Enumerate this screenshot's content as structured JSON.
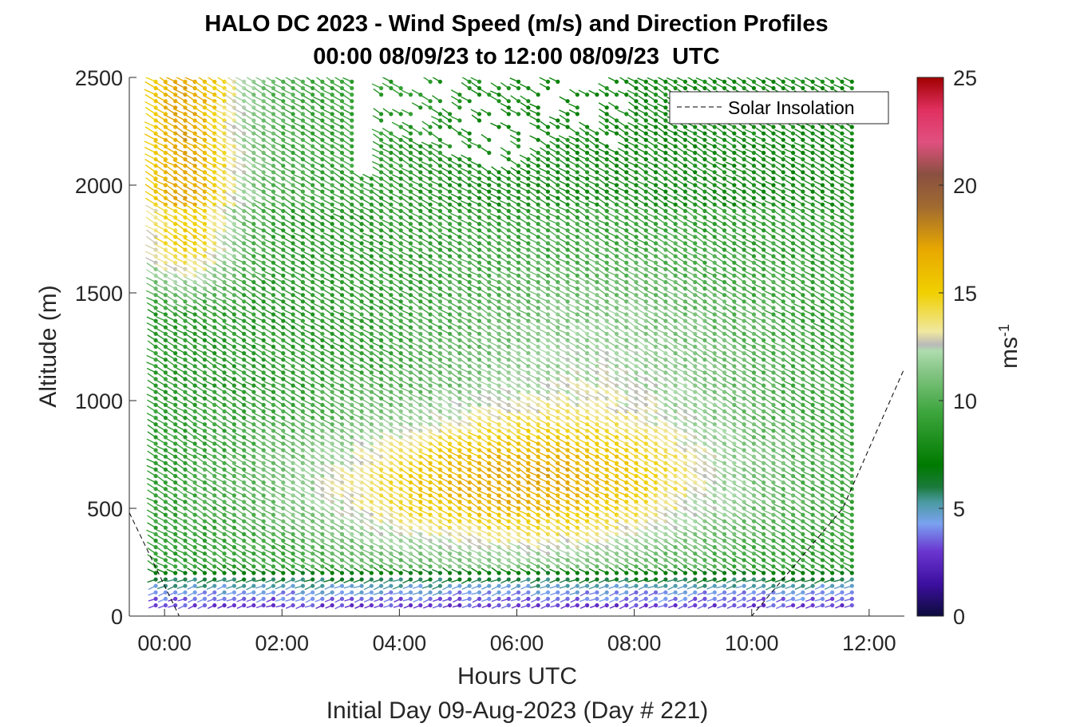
{
  "chart_data": {
    "type": "wind barb profile",
    "title": "HALO DC 2023 - Wind Speed (m/s) and Direction Profiles",
    "subtitle": "00:00 08/09/23 to 12:00 08/09/23  UTC",
    "xlabel": "Hours UTC",
    "xlabel_secondary": "Initial Day 09-Aug-2023 (Day # 221)",
    "ylabel": "Altitude (m)",
    "x_tick_labels": [
      "00:00",
      "02:00",
      "04:00",
      "06:00",
      "08:00",
      "10:00",
      "12:00"
    ],
    "x_ticks_hours": [
      0,
      2,
      4,
      6,
      8,
      10,
      12
    ],
    "xlim_hours": [
      -0.6,
      12.6
    ],
    "y_ticks": [
      0,
      500,
      1000,
      1500,
      2000,
      2500
    ],
    "ylim": [
      0,
      2500
    ],
    "colorbar": {
      "label": "ms-1",
      "label_base": "ms",
      "label_exponent": "-1",
      "ticks": [
        0,
        5,
        10,
        15,
        20,
        25
      ],
      "range": [
        0,
        25
      ],
      "colors": [
        {
          "v": 0,
          "c": "#0c0c3c"
        },
        {
          "v": 1.5,
          "c": "#3d0fa0"
        },
        {
          "v": 3,
          "c": "#6a35d0"
        },
        {
          "v": 4.3,
          "c": "#7aa2f0"
        },
        {
          "v": 5.3,
          "c": "#4a9aa0"
        },
        {
          "v": 6,
          "c": "#1a7a3a"
        },
        {
          "v": 7,
          "c": "#007a00"
        },
        {
          "v": 9.5,
          "c": "#3ea63e"
        },
        {
          "v": 11.5,
          "c": "#8cc88c"
        },
        {
          "v": 12.3,
          "c": "#aedcae"
        },
        {
          "v": 12.6,
          "c": "#b9b9b9"
        },
        {
          "v": 13.2,
          "c": "#f0e8a0"
        },
        {
          "v": 15,
          "c": "#f0d000"
        },
        {
          "v": 17,
          "c": "#e8a800"
        },
        {
          "v": 19,
          "c": "#a06a30"
        },
        {
          "v": 20.5,
          "c": "#8a5040"
        },
        {
          "v": 22,
          "c": "#e05080"
        },
        {
          "v": 23.5,
          "c": "#e03060"
        },
        {
          "v": 25,
          "c": "#a00000"
        }
      ]
    },
    "legend": {
      "placement": "top-right",
      "entries": [
        "Solar Insolation"
      ]
    },
    "series": [
      {
        "name": "Solar Insolation",
        "style": "dashed",
        "color": "#000000",
        "x": [
          -0.6,
          0.25,
          10.0,
          11.55,
          12.6
        ],
        "y": [
          480,
          0,
          0,
          500,
          1150
        ]
      }
    ],
    "wind_profile_summary": {
      "time_start_hours": -0.15,
      "time_end_hours": 11.75,
      "time_step_hours": 0.167,
      "altitude_start_m": 50,
      "altitude_end_m": 2500,
      "altitude_step_m": 30,
      "direction": "from northwest (barbs tilt toward upper-left)",
      "near_surface_speed_ms": 3,
      "jet_core_speed_ms": 15,
      "jet_core_altitude_m": 600,
      "jet_core_time_hours": 6.0,
      "data_gap_region": {
        "hours": [
          3.5,
          8.0
        ],
        "altitude_m": [
          2100,
          2500
        ]
      }
    }
  }
}
